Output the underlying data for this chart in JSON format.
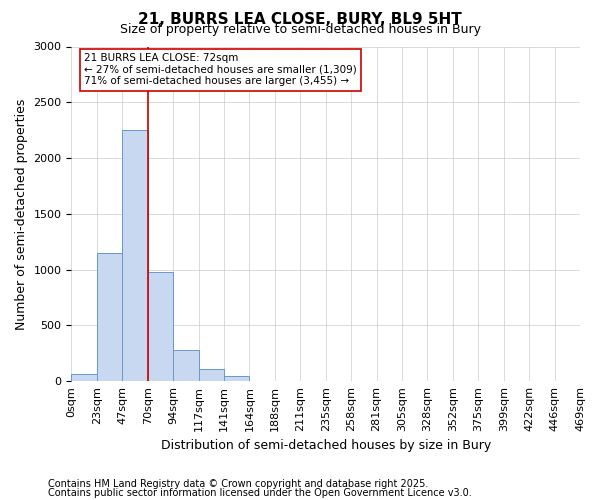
{
  "title": "21, BURRS LEA CLOSE, BURY, BL9 5HT",
  "subtitle": "Size of property relative to semi-detached houses in Bury",
  "xlabel": "Distribution of semi-detached houses by size in Bury",
  "ylabel": "Number of semi-detached properties",
  "bin_labels": [
    "0sqm",
    "23sqm",
    "47sqm",
    "70sqm",
    "94sqm",
    "117sqm",
    "141sqm",
    "164sqm",
    "188sqm",
    "211sqm",
    "235sqm",
    "258sqm",
    "281sqm",
    "305sqm",
    "328sqm",
    "352sqm",
    "375sqm",
    "399sqm",
    "422sqm",
    "446sqm",
    "469sqm"
  ],
  "bar_heights": [
    60,
    1150,
    2250,
    975,
    280,
    110,
    50,
    5,
    5,
    5,
    0,
    0,
    0,
    0,
    0,
    0,
    0,
    0,
    0,
    0
  ],
  "bar_color": "#c8d8f0",
  "bar_edge_color": "#6699cc",
  "property_bin_index": 3,
  "vline_color": "#cc0000",
  "annotation_title": "21 BURRS LEA CLOSE: 72sqm",
  "annotation_line1": "← 27% of semi-detached houses are smaller (1,309)",
  "annotation_line2": "71% of semi-detached houses are larger (3,455) →",
  "annotation_box_color": "#ffffff",
  "annotation_box_edge": "#cc0000",
  "ylim": [
    0,
    3000
  ],
  "footnote1": "Contains HM Land Registry data © Crown copyright and database right 2025.",
  "footnote2": "Contains public sector information licensed under the Open Government Licence v3.0.",
  "grid_color": "#cccccc",
  "bg_color": "#ffffff",
  "title_fontsize": 11,
  "subtitle_fontsize": 9,
  "ylabel_fontsize": 9,
  "xlabel_fontsize": 9,
  "tick_fontsize": 8,
  "footnote_fontsize": 7
}
